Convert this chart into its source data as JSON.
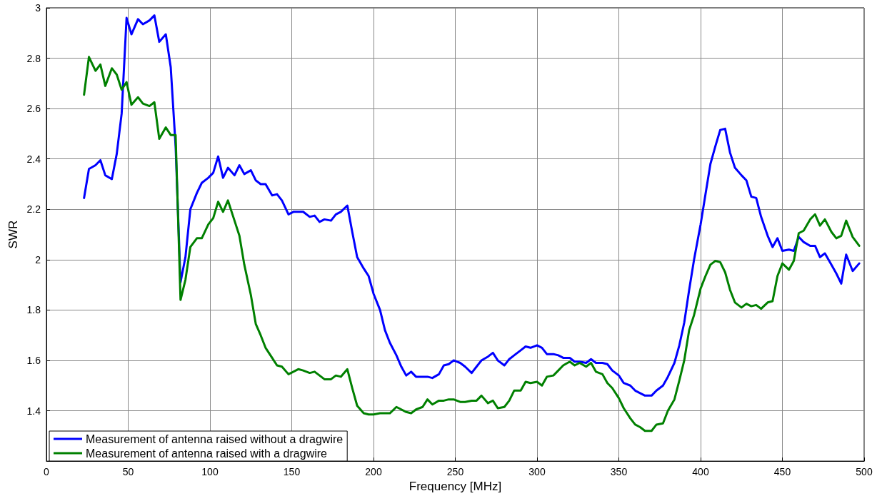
{
  "chart_data": {
    "type": "line",
    "xlabel": "Frequency [MHz]",
    "ylabel": "SWR",
    "xlim": [
      0,
      500
    ],
    "ylim": [
      1.2,
      3
    ],
    "xticks": [
      0,
      50,
      100,
      150,
      200,
      250,
      300,
      350,
      400,
      450,
      500
    ],
    "yticks": [
      {
        "value": 1.2,
        "label": null
      },
      1.4,
      1.6,
      1.8,
      2,
      2.2,
      2.4,
      2.6,
      2.8,
      3
    ],
    "grid": true,
    "legend": "bottom left",
    "marker": "none",
    "line_style": "solid",
    "x": [
      23,
      26,
      30,
      33,
      36,
      40,
      43,
      46,
      49,
      52,
      56,
      59,
      63,
      66,
      69,
      73,
      76,
      79,
      82,
      85,
      88,
      92,
      95,
      99,
      102,
      105,
      108,
      111,
      115,
      118,
      121,
      125,
      128,
      131,
      134,
      138,
      141,
      144,
      148,
      151,
      154,
      157,
      161,
      164,
      167,
      170,
      174,
      177,
      180,
      184,
      187,
      190,
      194,
      197,
      200,
      204,
      207,
      210,
      214,
      217,
      220,
      223,
      226,
      230,
      233,
      236,
      240,
      243,
      246,
      249,
      253,
      256,
      260,
      263,
      266,
      270,
      273,
      276,
      280,
      283,
      286,
      290,
      293,
      296,
      300,
      303,
      306,
      310,
      313,
      316,
      320,
      323,
      326,
      330,
      333,
      336,
      340,
      343,
      346,
      350,
      353,
      357,
      360,
      363,
      366,
      370,
      373,
      377,
      380,
      384,
      387,
      390,
      393,
      396,
      400,
      403,
      406,
      409,
      412,
      415,
      418,
      421,
      425,
      428,
      431,
      434,
      437,
      441,
      444,
      447,
      450,
      454,
      457,
      460,
      463,
      467,
      470,
      473,
      476,
      480,
      483,
      486,
      489,
      493,
      497
    ],
    "series": [
      {
        "name": "Measurement of antenna raised without a dragwire",
        "color": "#0000ff",
        "values": [
          2.245,
          2.36,
          2.375,
          2.395,
          2.335,
          2.32,
          2.42,
          2.58,
          2.96,
          2.895,
          2.955,
          2.935,
          2.95,
          2.97,
          2.865,
          2.895,
          2.765,
          2.45,
          1.91,
          2.01,
          2.2,
          2.265,
          2.305,
          2.325,
          2.345,
          2.41,
          2.325,
          2.365,
          2.335,
          2.375,
          2.34,
          2.355,
          2.315,
          2.3,
          2.3,
          2.255,
          2.26,
          2.235,
          2.18,
          2.19,
          2.19,
          2.19,
          2.17,
          2.175,
          2.15,
          2.16,
          2.155,
          2.18,
          2.19,
          2.215,
          2.11,
          2.01,
          1.965,
          1.935,
          1.865,
          1.8,
          1.72,
          1.67,
          1.62,
          1.575,
          1.54,
          1.555,
          1.535,
          1.535,
          1.535,
          1.53,
          1.545,
          1.58,
          1.585,
          1.6,
          1.59,
          1.575,
          1.55,
          1.575,
          1.6,
          1.615,
          1.63,
          1.6,
          1.58,
          1.605,
          1.62,
          1.64,
          1.655,
          1.65,
          1.66,
          1.65,
          1.625,
          1.625,
          1.62,
          1.61,
          1.61,
          1.595,
          1.595,
          1.59,
          1.605,
          1.59,
          1.59,
          1.585,
          1.56,
          1.54,
          1.51,
          1.5,
          1.48,
          1.47,
          1.46,
          1.46,
          1.48,
          1.5,
          1.535,
          1.59,
          1.66,
          1.75,
          1.88,
          2.0,
          2.14,
          2.26,
          2.38,
          2.45,
          2.515,
          2.52,
          2.425,
          2.365,
          2.335,
          2.315,
          2.25,
          2.245,
          2.17,
          2.095,
          2.05,
          2.085,
          2.035,
          2.04,
          2.035,
          2.09,
          2.07,
          2.055,
          2.055,
          2.01,
          2.025,
          1.98,
          1.945,
          1.905,
          2.02,
          1.955,
          1.985
        ]
      },
      {
        "name": "Measurement of antenna raised with a dragwire",
        "color": "#008000",
        "values": [
          2.655,
          2.805,
          2.75,
          2.775,
          2.69,
          2.76,
          2.735,
          2.675,
          2.705,
          2.615,
          2.645,
          2.62,
          2.61,
          2.625,
          2.48,
          2.525,
          2.495,
          2.495,
          1.84,
          1.92,
          2.05,
          2.085,
          2.085,
          2.14,
          2.165,
          2.23,
          2.19,
          2.235,
          2.155,
          2.095,
          1.98,
          1.86,
          1.745,
          1.7,
          1.65,
          1.61,
          1.58,
          1.575,
          1.545,
          1.555,
          1.565,
          1.56,
          1.55,
          1.555,
          1.54,
          1.525,
          1.525,
          1.54,
          1.535,
          1.565,
          1.49,
          1.42,
          1.39,
          1.385,
          1.385,
          1.39,
          1.39,
          1.39,
          1.415,
          1.405,
          1.395,
          1.39,
          1.405,
          1.415,
          1.445,
          1.425,
          1.44,
          1.44,
          1.445,
          1.445,
          1.435,
          1.435,
          1.44,
          1.44,
          1.46,
          1.43,
          1.44,
          1.41,
          1.415,
          1.44,
          1.48,
          1.48,
          1.515,
          1.51,
          1.515,
          1.5,
          1.535,
          1.54,
          1.56,
          1.58,
          1.595,
          1.58,
          1.59,
          1.575,
          1.59,
          1.555,
          1.545,
          1.51,
          1.49,
          1.45,
          1.41,
          1.37,
          1.345,
          1.335,
          1.32,
          1.32,
          1.345,
          1.35,
          1.4,
          1.445,
          1.52,
          1.6,
          1.72,
          1.78,
          1.885,
          1.935,
          1.98,
          1.995,
          1.99,
          1.95,
          1.88,
          1.83,
          1.81,
          1.825,
          1.815,
          1.82,
          1.805,
          1.83,
          1.835,
          1.935,
          1.985,
          1.96,
          1.995,
          2.105,
          2.115,
          2.16,
          2.18,
          2.135,
          2.16,
          2.11,
          2.085,
          2.095,
          2.155,
          2.09,
          2.055
        ]
      }
    ]
  }
}
